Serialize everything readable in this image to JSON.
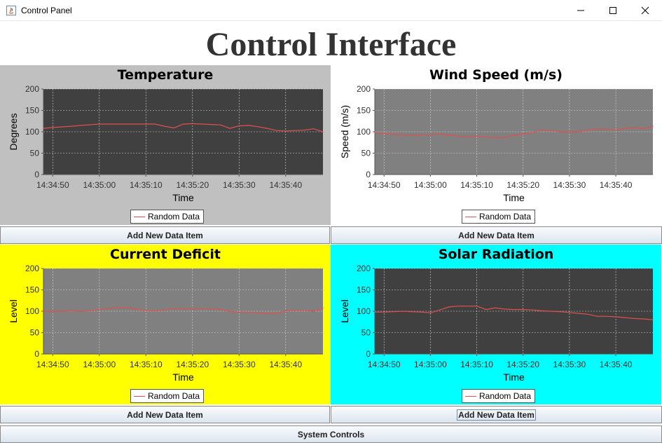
{
  "window": {
    "title": "Control Panel",
    "controls": [
      "minimize",
      "maximize",
      "close"
    ]
  },
  "header": {
    "title": "Control Interface"
  },
  "panels": [
    {
      "title": "Temperature",
      "ylabel": "Degrees",
      "xlabel": "Time",
      "bg": "#c0c0c0",
      "plot_bg": "#404040",
      "button_label": "Add New Data Item",
      "legend": "Random Data"
    },
    {
      "title": "Wind Speed (m/s)",
      "ylabel": "Speed (m/s)",
      "xlabel": "Time",
      "bg": "#ffffff",
      "plot_bg": "#808080",
      "button_label": "Add New Data Item",
      "legend": "Random Data"
    },
    {
      "title": "Current Deficit",
      "ylabel": "Level",
      "xlabel": "Time",
      "bg": "#ffff00",
      "plot_bg": "#808080",
      "button_label": "Add New Data Item",
      "legend": "Random Data"
    },
    {
      "title": "Solar Radiation",
      "ylabel": "Level",
      "xlabel": "Time",
      "bg": "#00ffff",
      "plot_bg": "#404040",
      "button_label": "Add New Data Item",
      "legend": "Random Data"
    }
  ],
  "footer": {
    "button_label": "System Controls"
  },
  "chart_data": [
    {
      "type": "line",
      "title": "Temperature",
      "xlabel": "Time",
      "ylabel": "Degrees",
      "ylim": [
        0,
        200
      ],
      "yticks": [
        0,
        50,
        100,
        150,
        200
      ],
      "xlim_seconds": [
        48,
        108
      ],
      "xticks": [
        "14:34:50",
        "14:35:00",
        "14:35:10",
        "14:35:20",
        "14:35:30",
        "14:35:40"
      ],
      "grid": true,
      "legend_position": "bottom",
      "line_color": "#e05050",
      "series": [
        {
          "name": "Random Data",
          "x": [
            48,
            50,
            54,
            56,
            60,
            62,
            64,
            66,
            68,
            70,
            72,
            74,
            76,
            78,
            80,
            82,
            84,
            86,
            88,
            90,
            92,
            94,
            96,
            98,
            100,
            102,
            104,
            106,
            108
          ],
          "values": [
            108,
            110,
            113,
            115,
            118,
            118,
            118,
            118,
            118,
            118,
            118,
            113,
            109,
            118,
            119,
            118,
            117,
            116,
            108,
            114,
            115,
            112,
            108,
            103,
            102,
            103,
            104,
            107,
            100
          ]
        }
      ]
    },
    {
      "type": "line",
      "title": "Wind Speed (m/s)",
      "xlabel": "Time",
      "ylabel": "Speed (m/s)",
      "ylim": [
        0,
        200
      ],
      "yticks": [
        0,
        50,
        100,
        150,
        200
      ],
      "xticks": [
        "14:34:50",
        "14:35:00",
        "14:35:10",
        "14:35:20",
        "14:35:30",
        "14:35:40"
      ],
      "grid": true,
      "legend_position": "bottom",
      "line_color": "#e05050",
      "series": [
        {
          "name": "Random Data",
          "x": [
            48,
            50,
            52,
            54,
            56,
            58,
            60,
            62,
            64,
            66,
            68,
            70,
            72,
            74,
            76,
            78,
            80,
            82,
            84,
            86,
            88,
            90,
            92,
            94,
            96,
            98,
            100,
            102,
            104,
            106,
            108
          ],
          "values": [
            98,
            96,
            94,
            93,
            92,
            93,
            93,
            95,
            92,
            90,
            89,
            90,
            88,
            86,
            87,
            92,
            95,
            98,
            104,
            103,
            100,
            100,
            100,
            104,
            107,
            106,
            104,
            108,
            110,
            107,
            113
          ]
        }
      ]
    },
    {
      "type": "line",
      "title": "Current Deficit",
      "xlabel": "Time",
      "ylabel": "Level",
      "ylim": [
        0,
        200
      ],
      "yticks": [
        0,
        50,
        100,
        150,
        200
      ],
      "xticks": [
        "14:34:50",
        "14:35:00",
        "14:35:10",
        "14:35:20",
        "14:35:30",
        "14:35:40"
      ],
      "grid": true,
      "legend_position": "bottom",
      "line_color": "#e05050",
      "series": [
        {
          "name": "Random Data",
          "x": [
            48,
            50,
            52,
            54,
            56,
            58,
            60,
            62,
            64,
            66,
            68,
            70,
            72,
            74,
            76,
            78,
            80,
            82,
            84,
            86,
            88,
            90,
            92,
            94,
            96,
            98,
            100,
            102,
            104,
            106,
            108
          ],
          "values": [
            100,
            100,
            100,
            101,
            100,
            101,
            104,
            106,
            108,
            108,
            105,
            102,
            101,
            103,
            106,
            106,
            106,
            106,
            106,
            104,
            100,
            98,
            97,
            96,
            95,
            95,
            101,
            102,
            102,
            100,
            107
          ]
        }
      ]
    },
    {
      "type": "line",
      "title": "Solar Radiation",
      "xlabel": "Time",
      "ylabel": "Level",
      "ylim": [
        0,
        200
      ],
      "yticks": [
        0,
        50,
        100,
        150,
        200
      ],
      "xticks": [
        "14:34:50",
        "14:35:00",
        "14:35:10",
        "14:35:20",
        "14:35:30",
        "14:35:40"
      ],
      "grid": true,
      "legend_position": "bottom",
      "line_color": "#e05050",
      "series": [
        {
          "name": "Random Data",
          "x": [
            48,
            50,
            52,
            54,
            56,
            58,
            60,
            62,
            64,
            66,
            68,
            70,
            72,
            74,
            76,
            78,
            80,
            82,
            84,
            86,
            88,
            90,
            92,
            94,
            96,
            98,
            100,
            102,
            104,
            106,
            108
          ],
          "values": [
            98,
            98,
            99,
            100,
            99,
            98,
            96,
            103,
            110,
            112,
            112,
            112,
            104,
            108,
            105,
            104,
            104,
            103,
            101,
            100,
            99,
            97,
            95,
            93,
            88,
            88,
            87,
            85,
            83,
            82,
            80
          ]
        }
      ]
    }
  ]
}
